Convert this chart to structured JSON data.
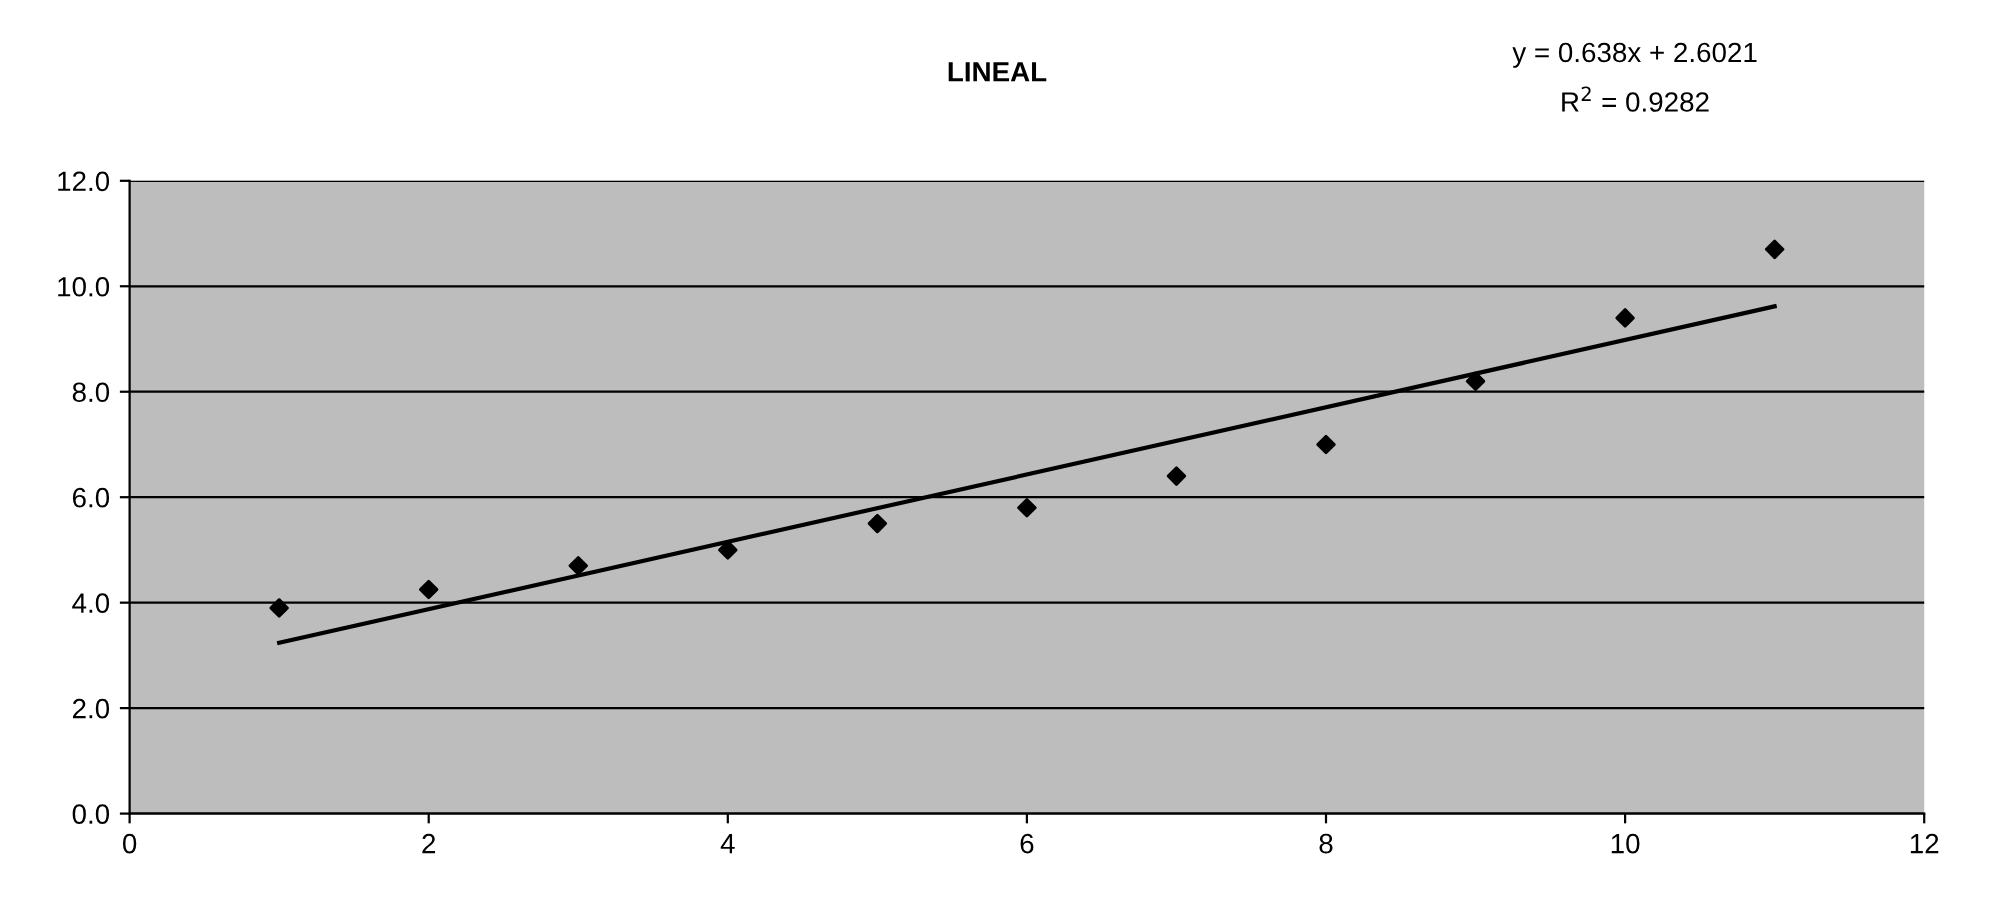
{
  "chart_data": {
    "type": "scatter",
    "title": "LINEAL",
    "annotations": [
      "y = 0.638x + 2.6021",
      "R$^{2}$ = 0.9282"
    ],
    "x": [
      1,
      2,
      3,
      4,
      5,
      6,
      7,
      8,
      9,
      10,
      11
    ],
    "series": [
      {
        "color": "#000000",
        "marker": "diamond",
        "values": [
          3.9,
          4.25,
          4.7,
          5.0,
          5.5,
          5.8,
          6.4,
          7.0,
          8.2,
          9.4,
          10.7
        ]
      },
      {
        "type": "line",
        "color": "#000000",
        "marker": "none",
        "line_style": "solid",
        "x": [
          1,
          11
        ],
        "values": [
          3.24,
          9.62
        ]
      }
    ],
    "xlim": [
      0,
      12
    ],
    "xticks": [
      0,
      2,
      4,
      6,
      8,
      10,
      12
    ],
    "ylim": [
      0,
      12
    ],
    "yticks": [
      {
        "value": 0,
        "label": "0.0"
      },
      {
        "value": 2,
        "label": "2.0"
      },
      {
        "value": 4,
        "label": "4.0"
      },
      {
        "value": 6,
        "label": "6.0"
      },
      {
        "value": 8,
        "label": "8.0"
      },
      {
        "value": 10,
        "label": "10.0"
      },
      {
        "value": 12,
        "label": "12.0"
      }
    ],
    "grid": "y"
  }
}
